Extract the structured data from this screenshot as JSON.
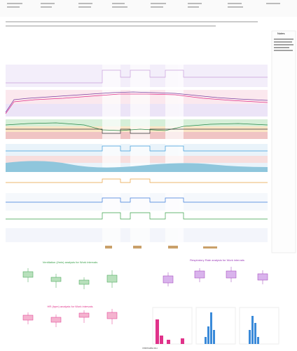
{
  "header": {
    "app": "intervals.icu"
  },
  "notes": {
    "title": "Notes"
  },
  "analysis": [
    {
      "title": "Ventilation (l/min) analysis for Work intervals"
    },
    {
      "title": "Respiratory Rate analysis for Work intervals"
    },
    {
      "title": "HR (bpm) analysis for Work intervals"
    }
  ]
}
